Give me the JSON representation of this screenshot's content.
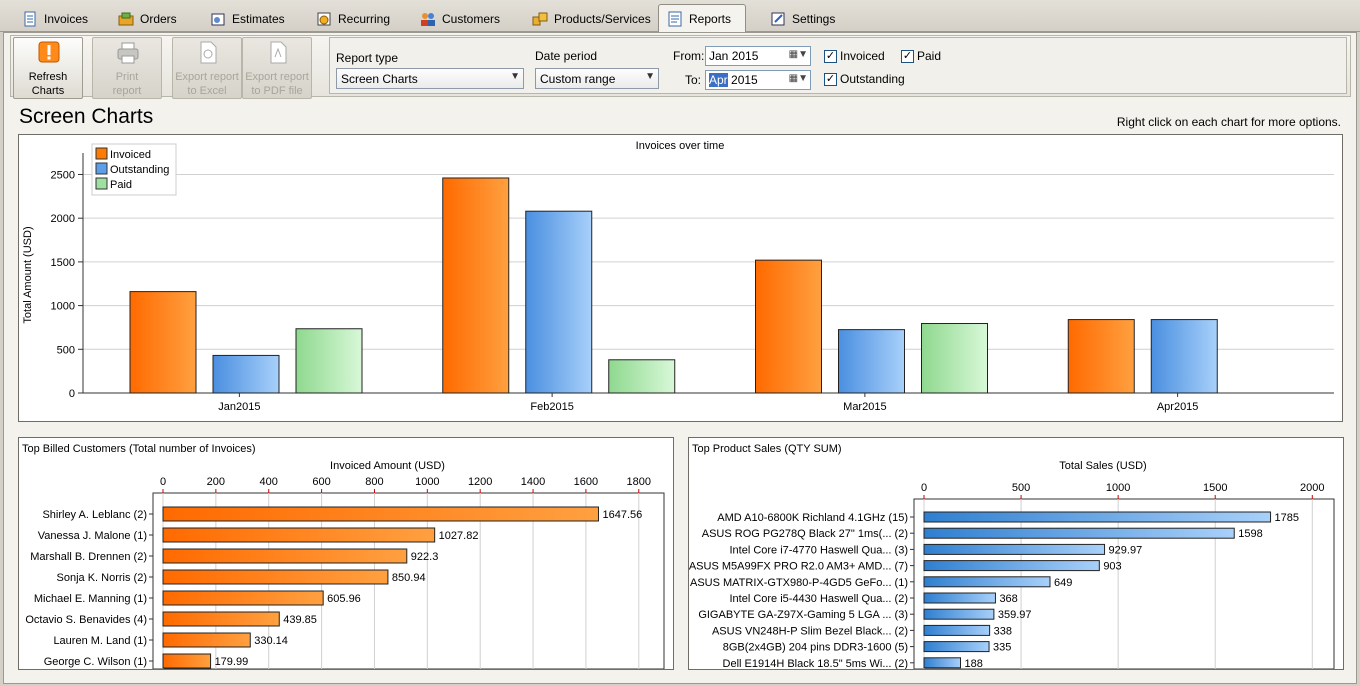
{
  "tabs": [
    {
      "label": "Invoices",
      "icon": "invoices-icon"
    },
    {
      "label": "Orders",
      "icon": "orders-icon"
    },
    {
      "label": "Estimates",
      "icon": "estimates-icon"
    },
    {
      "label": "Recurring",
      "icon": "recurring-icon"
    },
    {
      "label": "Customers",
      "icon": "customers-icon"
    },
    {
      "label": "Products/Services",
      "icon": "products-icon"
    },
    {
      "label": "Reports",
      "icon": "reports-icon",
      "active": true
    },
    {
      "label": "Settings",
      "icon": "settings-icon"
    }
  ],
  "toolbar": {
    "refresh_line1": "Refresh",
    "refresh_line2": "Charts",
    "print_line1": "Print",
    "print_line2": "report",
    "excel_line1": "Export report",
    "excel_line2": "to Excel",
    "pdf_line1": "Export report",
    "pdf_line2": "to PDF file"
  },
  "filters": {
    "report_type_label": "Report type",
    "report_type_value": "Screen Charts",
    "date_period_label": "Date period",
    "date_period_value": "Custom range",
    "from_label": "From:",
    "from_month": "Jan",
    "from_year": "2015",
    "to_label": "To:",
    "to_month": "Apr",
    "to_year": "2015",
    "invoiced_label": "Invoiced",
    "paid_label": "Paid",
    "outstanding_label": "Outstanding",
    "invoiced_checked": true,
    "paid_checked": true,
    "outstanding_checked": true
  },
  "page": {
    "title": "Screen Charts",
    "hint": "Right click on each chart for more options."
  },
  "colors": {
    "invoiced": "#ff7a00",
    "outstanding": "#5d9ee8",
    "paid": "#9fe0a0"
  },
  "chart_data": [
    {
      "type": "bar",
      "title": "Invoices over time",
      "ylabel": "Total Amount (USD)",
      "xlabel": "",
      "categories": [
        "Jan2015",
        "Feb2015",
        "Mar2015",
        "Apr2015"
      ],
      "series": [
        {
          "name": "Invoiced",
          "values": [
            1160,
            2460,
            1520,
            840
          ]
        },
        {
          "name": "Outstanding",
          "values": [
            430,
            2080,
            725,
            840
          ]
        },
        {
          "name": "Paid",
          "values": [
            735,
            380,
            795,
            0
          ]
        }
      ],
      "ylim": [
        0,
        2700
      ],
      "yticks": [
        0,
        500,
        1000,
        1500,
        2000,
        2500
      ],
      "grid": true,
      "legend": "top-left"
    },
    {
      "type": "bar",
      "orientation": "horizontal",
      "title": "Top Billed Customers (Total number of Invoices)",
      "xlabel": "Invoiced Amount (USD)",
      "categories": [
        "Shirley A. Leblanc (2)",
        "Vanessa J. Malone (1)",
        "Marshall B. Drennen (2)",
        "Sonja K. Norris (2)",
        "Michael E. Manning (1)",
        "Octavio S. Benavides (4)",
        "Lauren M. Land (1)",
        "George C. Wilson (1)"
      ],
      "values": [
        1647.56,
        1027.82,
        922.3,
        850.94,
        605.96,
        439.85,
        330.14,
        179.99
      ],
      "labels": [
        "1647.56",
        "1027.82",
        "922.3",
        "850.94",
        "605.96",
        "439.85",
        "330.14",
        "179.99"
      ],
      "xlim": [
        0,
        1850
      ],
      "xticks": [
        0,
        200,
        400,
        600,
        800,
        1000,
        1200,
        1400,
        1600,
        1800
      ],
      "grid": true
    },
    {
      "type": "bar",
      "orientation": "horizontal",
      "title": "Top Product Sales (QTY SUM)",
      "xlabel": "Total Sales (USD)",
      "categories": [
        "AMD A10-6800K Richland 4.1GHz (15)",
        "ASUS ROG PG278Q Black 27\" 1ms(... (2)",
        "Intel Core i7-4770 Haswell Qua... (3)",
        "ASUS M5A99FX PRO R2.0 AM3+ AMD... (7)",
        "ASUS MATRIX-GTX980-P-4GD5 GeFo... (1)",
        "Intel Core i5-4430 Haswell Qua... (2)",
        "GIGABYTE GA-Z97X-Gaming 5 LGA ... (3)",
        "ASUS VN248H-P Slim Bezel Black... (2)",
        "8GB(2x4GB) 204 pins DDR3-1600 (5)",
        "Dell E1914H Black 18.5\" 5ms Wi... (2)"
      ],
      "values": [
        1785,
        1598,
        929.97,
        903,
        649,
        368,
        359.97,
        338,
        335,
        188
      ],
      "labels": [
        "1785",
        "1598",
        "929.97",
        "903",
        "649",
        "368",
        "359.97",
        "338",
        "335",
        "188"
      ],
      "xlim": [
        0,
        2050
      ],
      "xticks": [
        0,
        500,
        1000,
        1500,
        2000
      ],
      "grid": true
    }
  ]
}
